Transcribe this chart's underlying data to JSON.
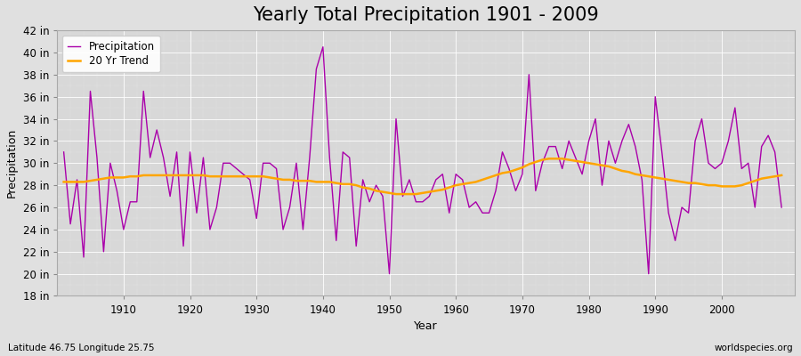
{
  "title": "Yearly Total Precipitation 1901 - 2009",
  "xlabel": "Year",
  "ylabel": "Precipitation",
  "subtitle_left": "Latitude 46.75 Longitude 25.75",
  "subtitle_right": "worldspecies.org",
  "ylim": [
    18,
    42
  ],
  "yticks": [
    18,
    20,
    22,
    24,
    26,
    28,
    30,
    32,
    34,
    36,
    38,
    40,
    42
  ],
  "ytick_labels": [
    "18 in",
    "20 in",
    "22 in",
    "24 in",
    "26 in",
    "28 in",
    "30 in",
    "32 in",
    "34 in",
    "36 in",
    "38 in",
    "40 in",
    "42 in"
  ],
  "years": [
    1901,
    1902,
    1903,
    1904,
    1905,
    1906,
    1907,
    1908,
    1909,
    1910,
    1911,
    1912,
    1913,
    1914,
    1915,
    1916,
    1917,
    1918,
    1919,
    1920,
    1921,
    1922,
    1923,
    1924,
    1925,
    1926,
    1927,
    1928,
    1929,
    1930,
    1931,
    1932,
    1933,
    1934,
    1935,
    1936,
    1937,
    1938,
    1939,
    1940,
    1941,
    1942,
    1943,
    1944,
    1945,
    1946,
    1947,
    1948,
    1949,
    1950,
    1951,
    1952,
    1953,
    1954,
    1955,
    1956,
    1957,
    1958,
    1959,
    1960,
    1961,
    1962,
    1963,
    1964,
    1965,
    1966,
    1967,
    1968,
    1969,
    1970,
    1971,
    1972,
    1973,
    1974,
    1975,
    1976,
    1977,
    1978,
    1979,
    1980,
    1981,
    1982,
    1983,
    1984,
    1985,
    1986,
    1987,
    1988,
    1989,
    1990,
    1991,
    1992,
    1993,
    1994,
    1995,
    1996,
    1997,
    1998,
    1999,
    2000,
    2001,
    2002,
    2003,
    2004,
    2005,
    2006,
    2007,
    2008,
    2009
  ],
  "precipitation": [
    31.0,
    24.5,
    28.5,
    21.5,
    36.5,
    30.5,
    22.0,
    30.0,
    27.5,
    24.0,
    26.5,
    26.5,
    36.5,
    30.5,
    33.0,
    30.5,
    27.0,
    31.0,
    22.5,
    31.0,
    25.5,
    30.5,
    24.0,
    26.0,
    30.0,
    30.0,
    29.5,
    29.0,
    28.5,
    25.0,
    30.0,
    30.0,
    29.5,
    24.0,
    26.0,
    30.0,
    24.0,
    30.5,
    38.5,
    40.5,
    30.5,
    23.0,
    31.0,
    30.5,
    22.5,
    28.5,
    26.5,
    28.0,
    27.0,
    20.0,
    34.0,
    27.0,
    28.5,
    26.5,
    26.5,
    27.0,
    28.5,
    29.0,
    25.5,
    29.0,
    28.5,
    26.0,
    26.5,
    25.5,
    25.5,
    27.5,
    31.0,
    29.5,
    27.5,
    29.0,
    38.0,
    27.5,
    30.0,
    31.5,
    31.5,
    29.5,
    32.0,
    30.5,
    29.0,
    32.0,
    34.0,
    28.0,
    32.0,
    30.0,
    32.0,
    33.5,
    31.5,
    28.5,
    20.0,
    36.0,
    31.0,
    25.5,
    23.0,
    26.0,
    25.5,
    32.0,
    34.0,
    30.0,
    29.5,
    30.0,
    32.0,
    35.0,
    29.5,
    30.0,
    26.0,
    31.5,
    32.5,
    31.0,
    26.0
  ],
  "trend": [
    28.3,
    28.3,
    28.3,
    28.3,
    28.4,
    28.5,
    28.6,
    28.7,
    28.7,
    28.7,
    28.8,
    28.8,
    28.9,
    28.9,
    28.9,
    28.9,
    28.9,
    28.9,
    28.9,
    28.9,
    28.9,
    28.9,
    28.8,
    28.8,
    28.8,
    28.8,
    28.8,
    28.8,
    28.8,
    28.8,
    28.8,
    28.7,
    28.6,
    28.5,
    28.5,
    28.4,
    28.4,
    28.4,
    28.3,
    28.3,
    28.3,
    28.2,
    28.1,
    28.1,
    28.0,
    27.8,
    27.7,
    27.5,
    27.4,
    27.3,
    27.2,
    27.2,
    27.2,
    27.2,
    27.3,
    27.4,
    27.5,
    27.6,
    27.8,
    28.0,
    28.1,
    28.2,
    28.3,
    28.5,
    28.7,
    28.9,
    29.1,
    29.2,
    29.4,
    29.6,
    29.9,
    30.1,
    30.3,
    30.4,
    30.4,
    30.4,
    30.3,
    30.2,
    30.1,
    30.0,
    29.9,
    29.8,
    29.7,
    29.5,
    29.3,
    29.2,
    29.0,
    28.9,
    28.8,
    28.7,
    28.6,
    28.5,
    28.4,
    28.3,
    28.2,
    28.2,
    28.1,
    28.0,
    28.0,
    27.9,
    27.9,
    27.9,
    28.0,
    28.2,
    28.4,
    28.6,
    28.7,
    28.8,
    28.9
  ],
  "precip_color": "#AA00AA",
  "trend_color": "#FFA500",
  "fig_bg_color": "#E0E0E0",
  "plot_bg_color": "#D8D8D8",
  "grid_color": "#FFFFFF",
  "title_fontsize": 15,
  "label_fontsize": 9,
  "tick_fontsize": 8.5
}
